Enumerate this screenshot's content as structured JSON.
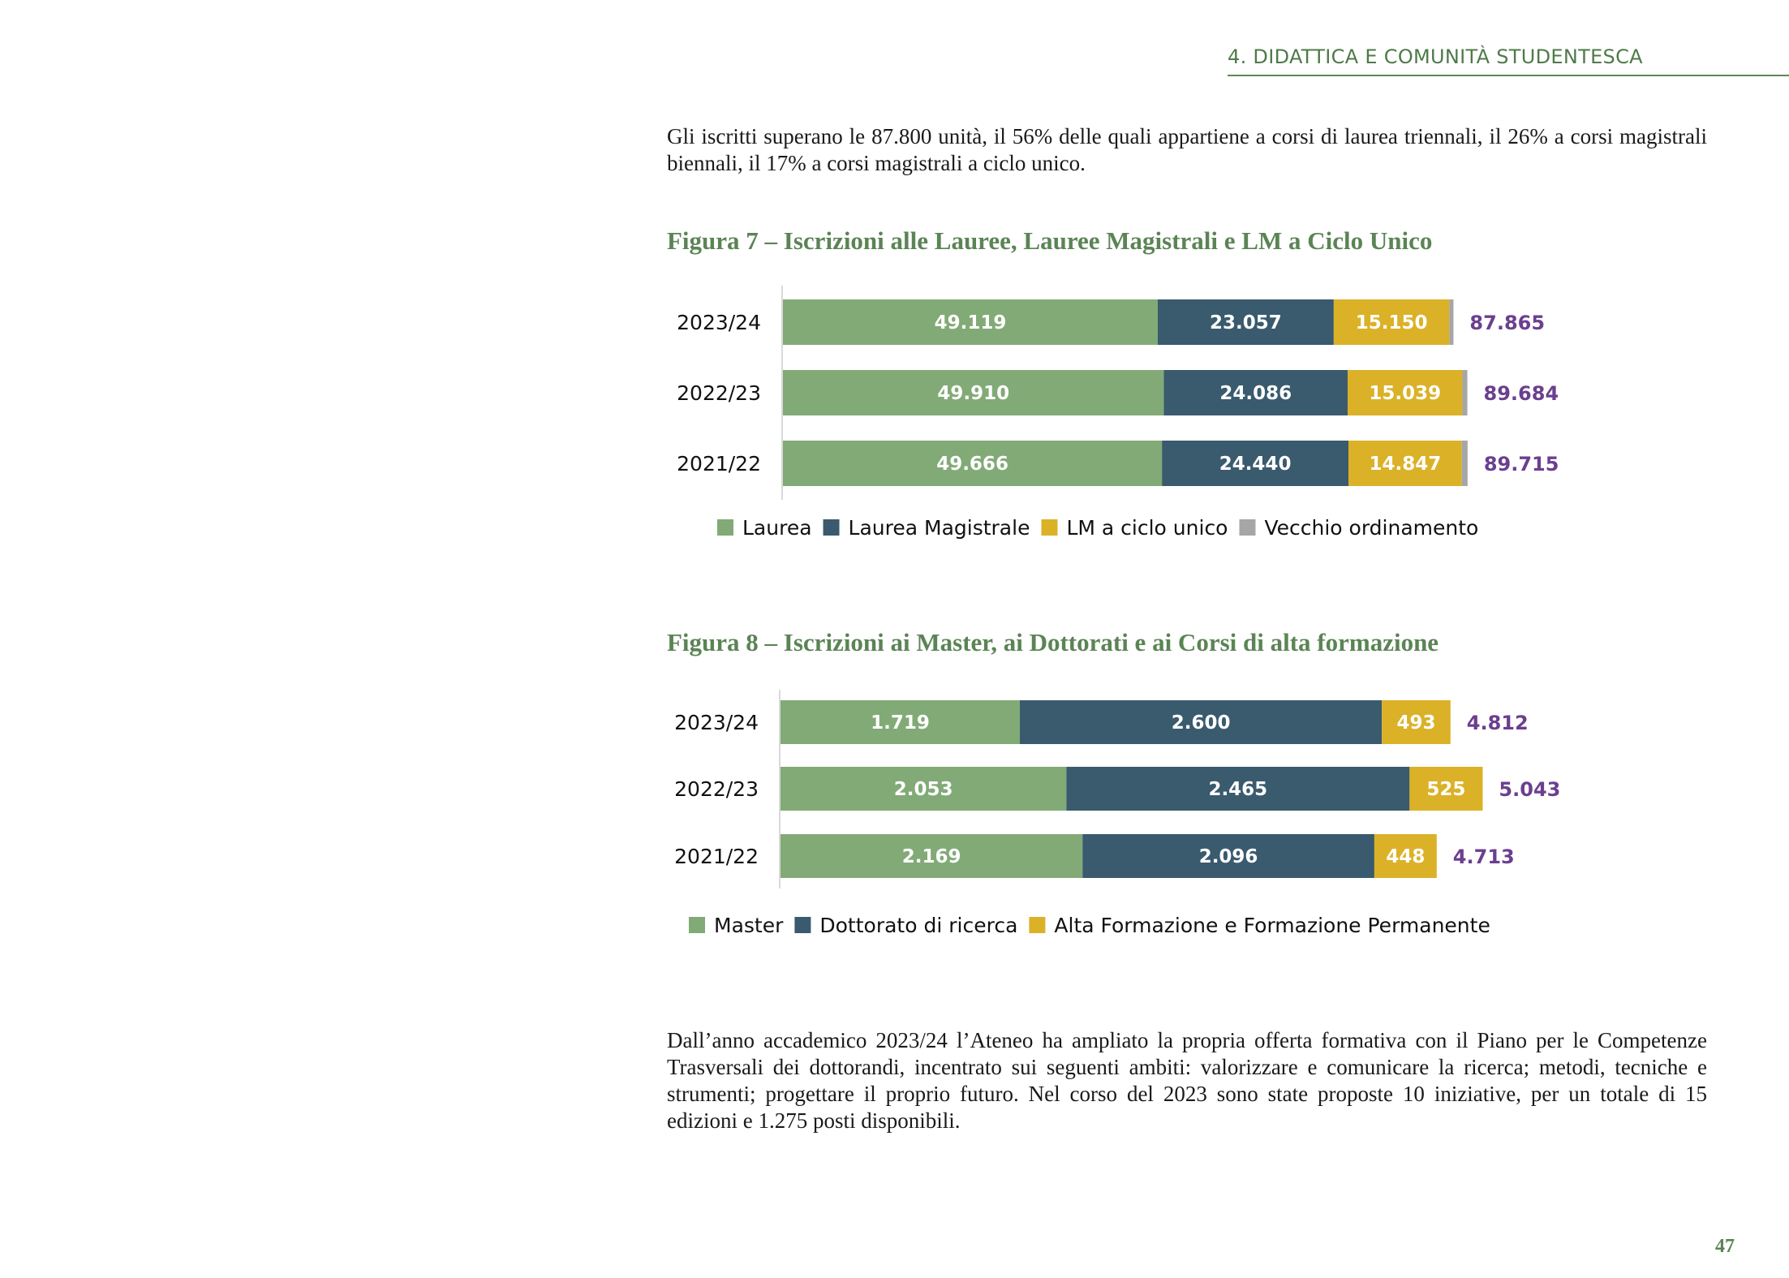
{
  "header": {
    "section": "4. DIDATTICA E COMUNITÀ STUDENTESCA"
  },
  "intro": {
    "text": "Gli iscritti superano le 87.800 unità, il 56% delle quali appartiene a corsi di laurea triennali, il 26% a corsi magistrali biennali, il 17% a corsi magistrali a ciclo unico."
  },
  "figure7": {
    "title": "Figura 7 – Iscrizioni alle Lauree, Lauree Magistrali e LM a Ciclo Unico"
  },
  "figure8": {
    "title": "Figura 8 – Iscrizioni ai Master, ai Dottorati e ai Corsi di alta formazione"
  },
  "closing": {
    "text": "Dall’anno accademico 2023/24 l’Ateneo ha ampliato la propria offerta formativa con il Piano per le Competenze Trasversali dei dottorandi, incentrato sui seguenti ambiti: valorizzare e comunicare la ricerca; metodi, tecniche e strumenti; progettare il proprio futuro. Nel corso del 2023 sono state proposte 10 iniziative, per un totale di 15 edizioni e 1.275 posti disponibili."
  },
  "page_number": "47",
  "colors": {
    "green": "#82aa77",
    "navy": "#3a5a6e",
    "gold": "#dbb127",
    "grey": "#a6a6a6",
    "purple": "#6b3f8f"
  },
  "chart_data": [
    {
      "type": "bar",
      "orientation": "horizontal",
      "stacked": true,
      "categories": [
        "2023/24",
        "2022/23",
        "2021/22"
      ],
      "series": [
        {
          "name": "Laurea",
          "values": [
            49119,
            49910,
            49666
          ],
          "labels": [
            "49.119",
            "49.910",
            "49.666"
          ],
          "color": "#82aa77",
          "label_color": "#ffffff"
        },
        {
          "name": "Laurea Magistrale",
          "values": [
            23057,
            24086,
            24440
          ],
          "labels": [
            "23.057",
            "24.086",
            "24.440"
          ],
          "color": "#3a5a6e",
          "label_color": "#ffffff"
        },
        {
          "name": "LM a ciclo unico",
          "values": [
            15150,
            15039,
            14847
          ],
          "labels": [
            "15.150",
            "15.039",
            "14.847"
          ],
          "color": "#dbb127",
          "label_color": "#ffffff"
        },
        {
          "name": "Vecchio ordinamento",
          "values": [
            539,
            649,
            762
          ],
          "labels": [
            "539",
            "649",
            "762"
          ],
          "color": "#a6a6a6",
          "label_color": "#000000"
        }
      ],
      "totals": {
        "values": [
          87865,
          89684,
          89715
        ],
        "labels": [
          "87.865",
          "89.684",
          "89.715"
        ],
        "color": "#6b3f8f"
      },
      "legend": "bottom",
      "grid": false
    },
    {
      "type": "bar",
      "orientation": "horizontal",
      "stacked": true,
      "categories": [
        "2023/24",
        "2022/23",
        "2021/22"
      ],
      "series": [
        {
          "name": "Master",
          "values": [
            1719,
            2053,
            2169
          ],
          "labels": [
            "1.719",
            "2.053",
            "2.169"
          ],
          "color": "#82aa77",
          "label_color": "#ffffff"
        },
        {
          "name": "Dottorato di ricerca",
          "values": [
            2600,
            2465,
            2096
          ],
          "labels": [
            "2.600",
            "2.465",
            "2.096"
          ],
          "color": "#3a5a6e",
          "label_color": "#ffffff"
        },
        {
          "name": "Alta Formazione e Formazione Permanente",
          "values": [
            493,
            525,
            448
          ],
          "labels": [
            "493",
            "525",
            "448"
          ],
          "color": "#dbb127",
          "label_color": "#ffffff"
        }
      ],
      "totals": {
        "values": [
          4812,
          5043,
          4713
        ],
        "labels": [
          "4.812",
          "5.043",
          "4.713"
        ],
        "color": "#6b3f8f"
      },
      "legend": "bottom",
      "grid": false
    }
  ]
}
